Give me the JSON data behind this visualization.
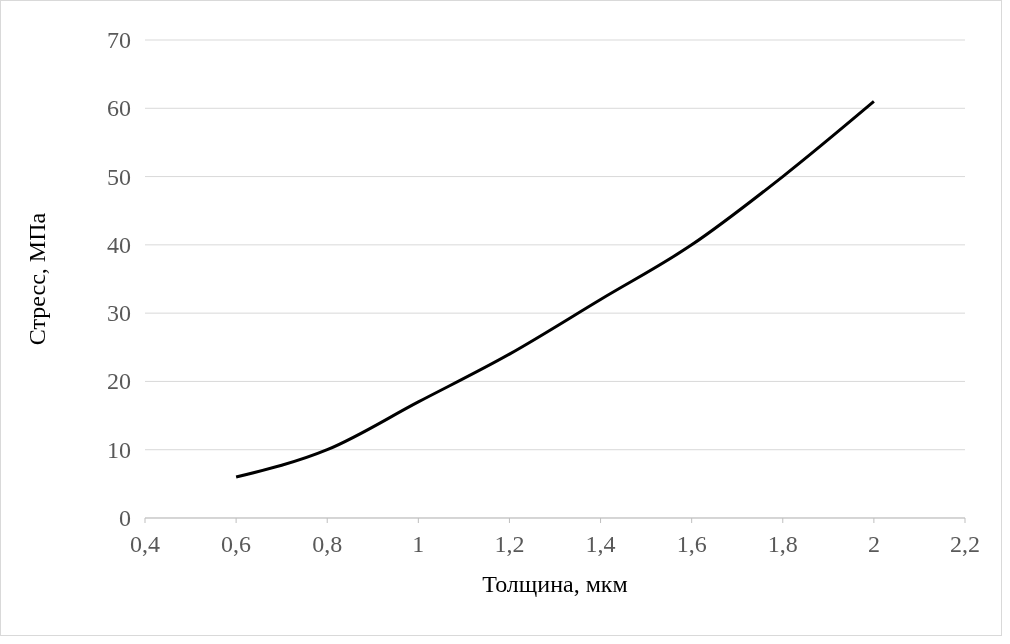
{
  "chart_data": {
    "type": "line",
    "xlabel": "Толщина, мкм",
    "ylabel": "Стресс, МПа",
    "x": [
      0.6,
      0.8,
      1.0,
      1.2,
      1.4,
      1.6,
      1.8,
      2.0
    ],
    "series": [
      {
        "color": "#000000",
        "values": [
          6,
          10,
          17,
          24,
          32,
          40,
          50,
          61
        ]
      }
    ],
    "xlim": [
      0.4,
      2.2
    ],
    "xticks": [
      {
        "value": 0.4,
        "label": "0,4"
      },
      {
        "value": 0.6,
        "label": "0,6"
      },
      {
        "value": 0.8,
        "label": "0,8"
      },
      1,
      {
        "value": 1.2,
        "label": "1,2"
      },
      {
        "value": 1.4,
        "label": "1,4"
      },
      {
        "value": 1.6,
        "label": "1,6"
      },
      {
        "value": 1.8,
        "label": "1,8"
      },
      2,
      {
        "value": 2.2,
        "label": "2,2"
      }
    ],
    "ylim": [
      0,
      70
    ],
    "yticks": [
      0,
      10,
      20,
      30,
      40,
      50,
      60,
      70
    ],
    "grid": "y",
    "marker": "none",
    "line_style": "solid"
  }
}
